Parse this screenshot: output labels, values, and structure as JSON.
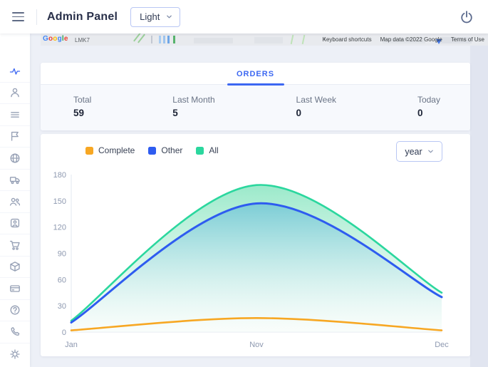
{
  "colors": {
    "accent_blue": "#3d68f2",
    "complete_orange": "#F7A723",
    "other_blue": "#2E5CF0",
    "all_green": "#2BD79E"
  },
  "header": {
    "title": "Admin Panel",
    "theme": {
      "value": "Light"
    },
    "icons": [
      "menu-icon",
      "chevron-down-icon",
      "power-icon"
    ]
  },
  "sidebar": {
    "items": [
      {
        "icon": "activity-icon",
        "active": true
      },
      {
        "icon": "user-icon",
        "active": false
      },
      {
        "icon": "list-icon",
        "active": false
      },
      {
        "icon": "flag-icon",
        "active": false
      },
      {
        "icon": "globe-icon",
        "active": false
      },
      {
        "icon": "truck-icon",
        "active": false
      },
      {
        "icon": "users-icon",
        "active": false
      },
      {
        "icon": "contact-icon",
        "active": false
      },
      {
        "icon": "cart-icon",
        "active": false
      },
      {
        "icon": "package-icon",
        "active": false
      },
      {
        "icon": "credit-card-icon",
        "active": false
      },
      {
        "icon": "help-icon",
        "active": false
      },
      {
        "icon": "phone-icon",
        "active": false
      },
      {
        "icon": "settings-icon",
        "active": false
      }
    ]
  },
  "map_strip": {
    "logo": "Google",
    "area_label": "LMK7",
    "attribution": {
      "keyboard": "Keyboard shortcuts",
      "map_data": "Map data ©2022 Google",
      "terms": "Terms of Use"
    }
  },
  "orders_card": {
    "tab_label": "ORDERS",
    "stats": [
      {
        "label": "Total",
        "value": "59"
      },
      {
        "label": "Last Month",
        "value": "5"
      },
      {
        "label": "Last Week",
        "value": "0"
      },
      {
        "label": "Today",
        "value": "0"
      }
    ]
  },
  "chart_card": {
    "legend": [
      {
        "label": "Complete",
        "color": "#F7A723"
      },
      {
        "label": "Other",
        "color": "#2E5CF0"
      },
      {
        "label": "All",
        "color": "#2BD79E"
      }
    ],
    "period_value": "year"
  },
  "chart_data": {
    "type": "area",
    "x": [
      "Jan",
      "Nov",
      "Dec"
    ],
    "series": [
      {
        "name": "Complete",
        "color": "#F7A723",
        "values": [
          2,
          16,
          2
        ]
      },
      {
        "name": "Other",
        "color": "#2E5CF0",
        "values": [
          11,
          147,
          40
        ]
      },
      {
        "name": "All",
        "color": "#2BD79E",
        "values": [
          13,
          168,
          45
        ]
      }
    ],
    "ylim": [
      0,
      180
    ],
    "yticks": [
      0,
      30,
      60,
      90,
      120,
      150,
      180
    ],
    "grid": false,
    "legend_position": "top-left",
    "smooth": true
  }
}
